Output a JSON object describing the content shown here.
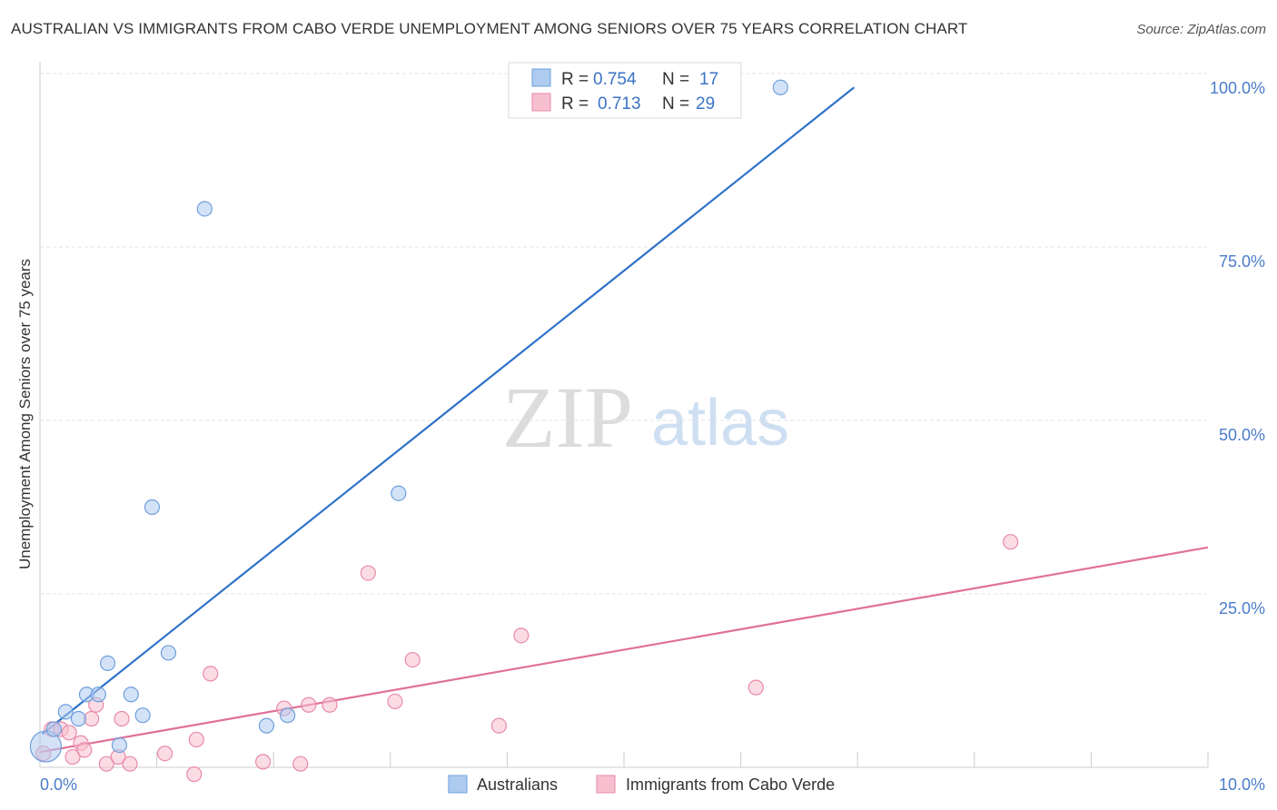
{
  "header": {
    "title": "AUSTRALIAN VS IMMIGRANTS FROM CABO VERDE UNEMPLOYMENT AMONG SENIORS OVER 75 YEARS CORRELATION CHART",
    "source": "Source: ZipAtlas.com"
  },
  "watermark": {
    "zip": "ZIP",
    "atlas": "atlas"
  },
  "colors": {
    "blue_fill": "#aecbf0",
    "blue_stroke": "#6f9fdc",
    "blue_line": "#2f72c9",
    "pink_fill": "#f7bfd0",
    "pink_stroke": "#e88aa8",
    "pink_line": "#e0709a",
    "grid": "#e3e3e3",
    "axis_text": "#4a7cc9"
  },
  "legend_top": {
    "series": [
      {
        "r_label": "R =",
        "r_value": "0.754",
        "n_label": "N =",
        "n_value": "17"
      },
      {
        "r_label": "R =",
        "r_value": "0.713",
        "n_label": "N =",
        "n_value": "29"
      }
    ]
  },
  "chart_data": {
    "type": "scatter",
    "title": "AUSTRALIAN VS IMMIGRANTS FROM CABO VERDE UNEMPLOYMENT AMONG SENIORS OVER 75 YEARS CORRELATION CHART",
    "xlabel": "",
    "ylabel": "Unemployment Among Seniors over 75 years",
    "xlim": [
      0,
      10
    ],
    "ylim": [
      0,
      100
    ],
    "x_tick_labels": [
      {
        "value": 0,
        "label": "0.0%"
      },
      {
        "value": 10,
        "label": "10.0%"
      }
    ],
    "y_tick_labels": [
      {
        "value": 25,
        "label": "25.0%"
      },
      {
        "value": 50,
        "label": "50.0%"
      },
      {
        "value": 75,
        "label": "75.0%"
      },
      {
        "value": 100,
        "label": "100.0%"
      }
    ],
    "y_gridlines": [
      25,
      50,
      75,
      100
    ],
    "x_minor_ticks": [
      1,
      2,
      3,
      4,
      5,
      6,
      7,
      8,
      9,
      10
    ],
    "series": [
      {
        "name": "Australians",
        "r": 0.754,
        "n": 17,
        "points": [
          {
            "x": 0.05,
            "y": 3.0,
            "big": true
          },
          {
            "x": 0.12,
            "y": 5.5
          },
          {
            "x": 0.22,
            "y": 8.0
          },
          {
            "x": 0.33,
            "y": 7.0
          },
          {
            "x": 0.4,
            "y": 10.5
          },
          {
            "x": 0.5,
            "y": 10.5
          },
          {
            "x": 0.58,
            "y": 15.0
          },
          {
            "x": 0.68,
            "y": 3.2
          },
          {
            "x": 0.78,
            "y": 10.5
          },
          {
            "x": 0.88,
            "y": 7.5
          },
          {
            "x": 0.96,
            "y": 37.5
          },
          {
            "x": 1.1,
            "y": 16.5
          },
          {
            "x": 1.41,
            "y": 80.5
          },
          {
            "x": 1.94,
            "y": 6.0
          },
          {
            "x": 2.12,
            "y": 7.5
          },
          {
            "x": 3.07,
            "y": 39.5
          },
          {
            "x": 6.34,
            "y": 98.0
          }
        ],
        "trendline": {
          "x1": 0.02,
          "y1": 4.8,
          "x2": 6.97,
          "y2": 98.0
        }
      },
      {
        "name": "Immigrants from Cabo Verde",
        "r": 0.713,
        "n": 29,
        "points": [
          {
            "x": 0.03,
            "y": 2.0
          },
          {
            "x": 0.1,
            "y": 5.5
          },
          {
            "x": 0.18,
            "y": 5.5
          },
          {
            "x": 0.25,
            "y": 5.0
          },
          {
            "x": 0.28,
            "y": 1.5
          },
          {
            "x": 0.35,
            "y": 3.5
          },
          {
            "x": 0.38,
            "y": 2.5
          },
          {
            "x": 0.44,
            "y": 7.0
          },
          {
            "x": 0.48,
            "y": 9.0
          },
          {
            "x": 0.57,
            "y": 0.5
          },
          {
            "x": 0.67,
            "y": 1.5
          },
          {
            "x": 0.7,
            "y": 7.0
          },
          {
            "x": 0.77,
            "y": 0.5
          },
          {
            "x": 1.07,
            "y": 2.0
          },
          {
            "x": 1.32,
            "y": -1.0
          },
          {
            "x": 1.34,
            "y": 4.0
          },
          {
            "x": 1.46,
            "y": 13.5
          },
          {
            "x": 1.91,
            "y": 0.8
          },
          {
            "x": 2.09,
            "y": 8.5
          },
          {
            "x": 2.23,
            "y": 0.5
          },
          {
            "x": 2.3,
            "y": 9.0
          },
          {
            "x": 2.48,
            "y": 9.0
          },
          {
            "x": 2.81,
            "y": 28.0
          },
          {
            "x": 3.04,
            "y": 9.5
          },
          {
            "x": 3.19,
            "y": 15.5
          },
          {
            "x": 3.93,
            "y": 6.0
          },
          {
            "x": 4.12,
            "y": 19.0
          },
          {
            "x": 6.13,
            "y": 11.5
          },
          {
            "x": 8.31,
            "y": 32.5
          }
        ],
        "trendline": {
          "x1": 0.0,
          "y1": 2.2,
          "x2": 10.0,
          "y2": 31.7
        }
      }
    ]
  }
}
